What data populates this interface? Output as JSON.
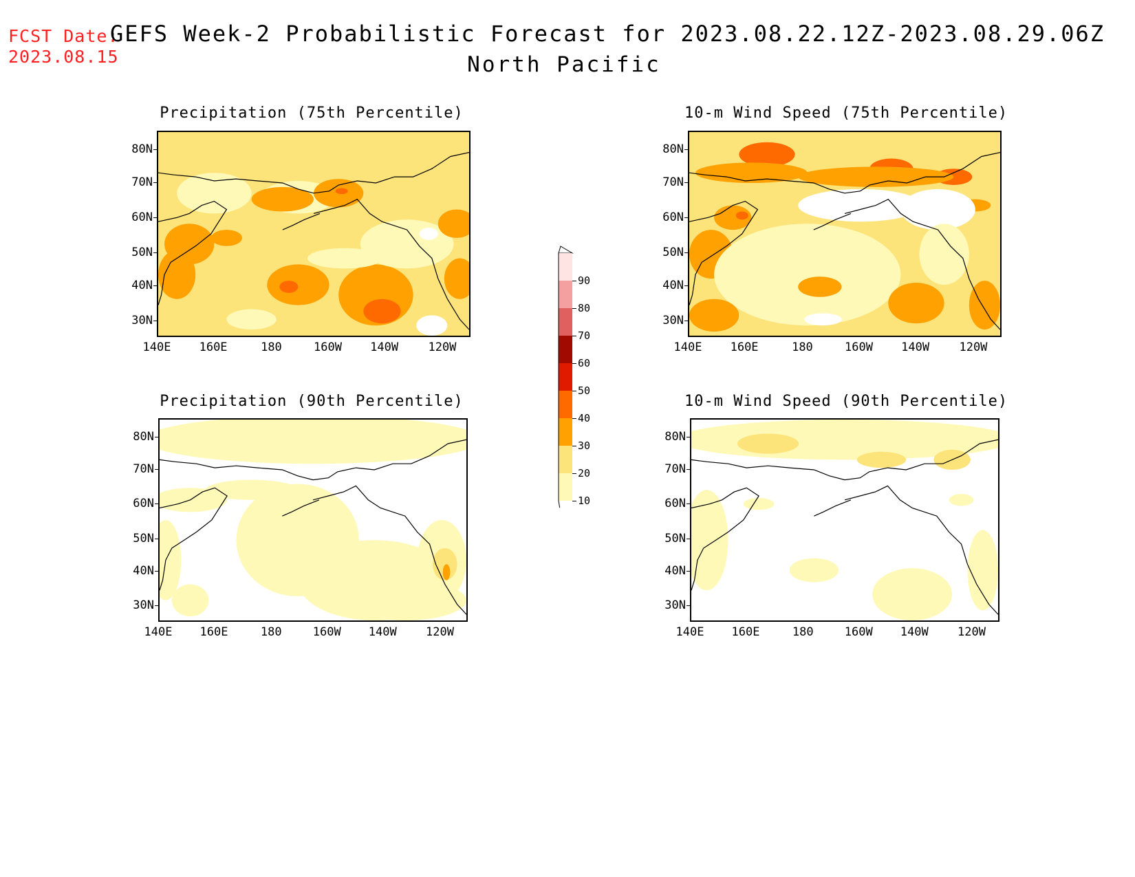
{
  "header": {
    "fcst_date_label": "FCST Date:",
    "fcst_date_value": "2023.08.15",
    "title": "GEFS Week-2 Probabilistic Forecast for 2023.08.22.12Z-2023.08.29.06Z",
    "region": "North Pacific"
  },
  "panels": [
    {
      "id": "p1",
      "title": "Precipitation (75th Percentile)"
    },
    {
      "id": "p2",
      "title": "10-m Wind Speed (75th Percentile)"
    },
    {
      "id": "p3",
      "title": "Precipitation (90th Percentile)"
    },
    {
      "id": "p4",
      "title": "10-m Wind Speed (90th Percentile)"
    }
  ],
  "axes": {
    "lat_labels": [
      "80N",
      "70N",
      "60N",
      "50N",
      "40N",
      "30N"
    ],
    "lon_labels": [
      "140E",
      "160E",
      "180",
      "160W",
      "140W",
      "120W"
    ]
  },
  "colorbar": {
    "levels": [
      "10",
      "20",
      "30",
      "40",
      "50",
      "60",
      "70",
      "80",
      "90"
    ],
    "colors": [
      "#fff9b8",
      "#fde47a",
      "#ffa100",
      "#ff6a00",
      "#e01a00",
      "#a00a00",
      "#e06060",
      "#f4a0a0",
      "#ffe4e4"
    ]
  }
}
